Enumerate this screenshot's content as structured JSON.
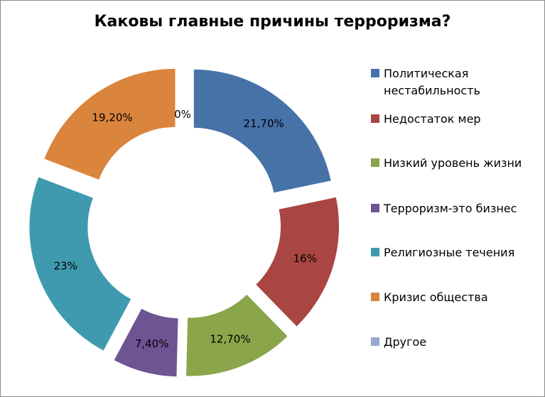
{
  "chart_data": {
    "type": "doughnut",
    "title": "Каковы главные причины терроризма?",
    "categories": [
      "Политическая нестабильность",
      "Недостаток мер",
      "Низкий уровень жизни",
      "Терроризм-это бизнес",
      "Религиозные течения",
      "Кризис общества",
      "Другое"
    ],
    "values": [
      21.7,
      16,
      12.7,
      7.4,
      23,
      19.2,
      0
    ],
    "data_labels": [
      "21,70%",
      "16%",
      "12,70%",
      "7,40%",
      "23%",
      "19,20%",
      "0%"
    ],
    "colors": [
      "#4672a8",
      "#a94543",
      "#8aa54a",
      "#6e5492",
      "#3f9aaf",
      "#db843d",
      "#93a9cf"
    ],
    "exploded": true,
    "legend_position": "right"
  }
}
